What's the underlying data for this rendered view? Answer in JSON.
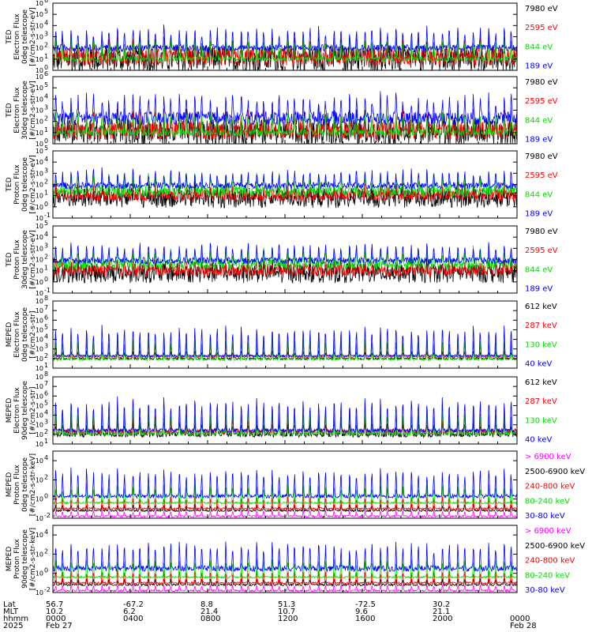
{
  "chart_data": [
    {
      "type": "line",
      "ylabel_lines": [
        "TED",
        "Electron Flux",
        "0deg telescope",
        "[#/cm2-s-str-eV]"
      ],
      "ylim_exp": [
        0,
        6
      ],
      "yticks_exp": [
        0,
        1,
        2,
        3,
        4,
        5,
        6
      ],
      "yscale": "log",
      "series": [
        {
          "name": "7980 eV",
          "color": "#000000",
          "base": 1.0,
          "spread": 1.2,
          "peak": 2.4
        },
        {
          "name": "2595 eV",
          "color": "#ff0000",
          "base": 1.2,
          "spread": 0.8,
          "peak": 3.0
        },
        {
          "name": "844 eV",
          "color": "#00dd00",
          "base": 1.0,
          "spread": 0.2,
          "peak": 3.4
        },
        {
          "name": "189 eV",
          "color": "#0000ff",
          "base": 2.0,
          "spread": 0.3,
          "peak": 4.2
        }
      ]
    },
    {
      "type": "line",
      "ylabel_lines": [
        "TED",
        "Electron Flux",
        "30deg telescope",
        "[#/cm2-s-str-eV]"
      ],
      "ylim_exp": [
        0,
        6
      ],
      "yticks_exp": [
        0,
        1,
        2,
        3,
        4,
        5,
        6
      ],
      "yscale": "log",
      "series": [
        {
          "name": "7980 eV",
          "color": "#000000",
          "base": 1.0,
          "spread": 1.2,
          "peak": 2.4
        },
        {
          "name": "2595 eV",
          "color": "#ff0000",
          "base": 1.2,
          "spread": 0.8,
          "peak": 3.0
        },
        {
          "name": "844 eV",
          "color": "#00dd00",
          "base": 1.0,
          "spread": 0.3,
          "peak": 3.4
        },
        {
          "name": "189 eV",
          "color": "#0000ff",
          "base": 2.3,
          "spread": 0.6,
          "peak": 4.8
        }
      ]
    },
    {
      "type": "line",
      "ylabel_lines": [
        "TED",
        "Proton Flux",
        "0deg telescope",
        "[#/cm2-s-str-eV]"
      ],
      "ylim_exp": [
        -1,
        5
      ],
      "yticks_exp": [
        -1,
        0,
        1,
        2,
        3,
        4,
        5
      ],
      "yscale": "log",
      "series": [
        {
          "name": "7980 eV",
          "color": "#000000",
          "base": 0.8,
          "spread": 0.9,
          "peak": 1.6
        },
        {
          "name": "2595 eV",
          "color": "#ff0000",
          "base": 1.0,
          "spread": 0.5,
          "peak": 1.8
        },
        {
          "name": "844 eV",
          "color": "#00dd00",
          "base": 1.4,
          "spread": 0.5,
          "peak": 3.2
        },
        {
          "name": "189 eV",
          "color": "#0000ff",
          "base": 1.9,
          "spread": 0.3,
          "peak": 3.6
        }
      ]
    },
    {
      "type": "line",
      "ylabel_lines": [
        "TED",
        "Proton Flux",
        "30deg telescope",
        "[#/cm2-s-str-eV]"
      ],
      "ylim_exp": [
        -1,
        5
      ],
      "yticks_exp": [
        -1,
        0,
        1,
        2,
        3,
        4,
        5
      ],
      "yscale": "log",
      "series": [
        {
          "name": "7980 eV",
          "color": "#000000",
          "base": 0.8,
          "spread": 0.9,
          "peak": 1.6
        },
        {
          "name": "2595 eV",
          "color": "#ff0000",
          "base": 1.0,
          "spread": 0.5,
          "peak": 1.8
        },
        {
          "name": "844 eV",
          "color": "#00dd00",
          "base": 1.6,
          "spread": 0.5,
          "peak": 3.2
        },
        {
          "name": "189 eV",
          "color": "#0000ff",
          "base": 1.9,
          "spread": 0.3,
          "peak": 3.8
        }
      ]
    },
    {
      "type": "line",
      "ylabel_lines": [
        "MEPED",
        "Electron Flux",
        "0deg telescope",
        "[#/cm2-s-str]"
      ],
      "ylim_exp": [
        1,
        8
      ],
      "yticks_exp": [
        1,
        2,
        3,
        4,
        5,
        6,
        7,
        8
      ],
      "yscale": "log",
      "series": [
        {
          "name": "612 keV",
          "color": "#000000",
          "base": 2.0,
          "spread": 0.1,
          "peak": 3.0
        },
        {
          "name": "287 keV",
          "color": "#ff0000",
          "base": 2.2,
          "spread": 0.1,
          "peak": 4.2
        },
        {
          "name": "130 keV",
          "color": "#00dd00",
          "base": 1.9,
          "spread": 0.1,
          "peak": 4.8
        },
        {
          "name": "40 keV",
          "color": "#0000ff",
          "base": 2.3,
          "spread": 0.1,
          "peak": 6.2
        }
      ]
    },
    {
      "type": "line",
      "ylabel_lines": [
        "MEPED",
        "Electron Flux",
        "90deg telescope",
        "[#/cm2-s-str]"
      ],
      "ylim_exp": [
        1,
        8
      ],
      "yticks_exp": [
        1,
        2,
        3,
        4,
        5,
        6,
        7,
        8
      ],
      "yscale": "log",
      "series": [
        {
          "name": "612 keV",
          "color": "#000000",
          "base": 2.0,
          "spread": 0.3,
          "peak": 3.6
        },
        {
          "name": "287 keV",
          "color": "#ff0000",
          "base": 2.3,
          "spread": 0.3,
          "peak": 4.6
        },
        {
          "name": "130 keV",
          "color": "#00dd00",
          "base": 2.1,
          "spread": 0.2,
          "peak": 5.0
        },
        {
          "name": "40 keV",
          "color": "#0000ff",
          "base": 2.4,
          "spread": 0.2,
          "peak": 6.6
        }
      ]
    },
    {
      "type": "line",
      "ylabel_lines": [
        "MEPED",
        "Proton Flux",
        "0deg telescope",
        "[#/cm2-s-str-keV]"
      ],
      "ylim_exp": [
        -2,
        5
      ],
      "yticks_exp": [
        -2,
        0,
        2,
        4
      ],
      "yscale": "log",
      "series": [
        {
          "name": "> 6900 keV",
          "color": "#ff00ff",
          "base": -1.8,
          "spread": 0.1,
          "peak": -1.0
        },
        {
          "name": "2500-6900 keV",
          "color": "#000000",
          "base": -1.2,
          "spread": 0.1,
          "peak": -0.4
        },
        {
          "name": "240-800 keV",
          "color": "#ff0000",
          "base": -1.0,
          "spread": 0.1,
          "peak": 0.6
        },
        {
          "name": "80-240 keV",
          "color": "#00dd00",
          "base": -0.4,
          "spread": 0.1,
          "peak": 2.0
        },
        {
          "name": "30-80 keV",
          "color": "#0000ff",
          "base": 0.3,
          "spread": 0.2,
          "peak": 3.8
        }
      ]
    },
    {
      "type": "line",
      "ylabel_lines": [
        "MEPED",
        "Proton Flux",
        "90deg telescope",
        "[#/cm2-s-str-keV]"
      ],
      "ylim_exp": [
        -2,
        5
      ],
      "yticks_exp": [
        -2,
        0,
        2,
        4
      ],
      "yscale": "log",
      "series": [
        {
          "name": "> 6900 keV",
          "color": "#ff00ff",
          "base": -1.8,
          "spread": 0.1,
          "peak": -1.0
        },
        {
          "name": "2500-6900 keV",
          "color": "#000000",
          "base": -1.2,
          "spread": 0.1,
          "peak": -0.4
        },
        {
          "name": "240-800 keV",
          "color": "#ff0000",
          "base": -1.0,
          "spread": 0.1,
          "peak": 0.6
        },
        {
          "name": "80-240 keV",
          "color": "#00dd00",
          "base": -0.4,
          "spread": 0.1,
          "peak": 2.0
        },
        {
          "name": "30-80 keV",
          "color": "#0000ff",
          "base": 0.5,
          "spread": 0.3,
          "peak": 3.8
        }
      ]
    }
  ],
  "xaxis": {
    "row_labels": [
      "Lat",
      "MLT",
      "hhmm",
      "2025"
    ],
    "columns": [
      {
        "lat": "56.7",
        "mlt": "10.2",
        "hhmm": "0000",
        "date": "Feb 27"
      },
      {
        "lat": "-67.2",
        "mlt": "6.2",
        "hhmm": "0400",
        "date": ""
      },
      {
        "lat": "8.8",
        "mlt": "21.4",
        "hhmm": "0800",
        "date": ""
      },
      {
        "lat": "51.3",
        "mlt": "10.7",
        "hhmm": "1200",
        "date": ""
      },
      {
        "lat": "-72.5",
        "mlt": "9.6",
        "hhmm": "1600",
        "date": ""
      },
      {
        "lat": "30.2",
        "mlt": "21.1",
        "hhmm": "2000",
        "date": ""
      },
      {
        "lat": "",
        "mlt": "",
        "hhmm": "0000",
        "date": "Feb 28"
      }
    ]
  },
  "orbit_passes": 30
}
